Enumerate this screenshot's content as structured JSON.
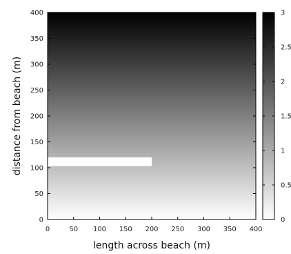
{
  "chart_data": {
    "type": "heatmap",
    "title": "",
    "xlabel": "length across beach (m)",
    "ylabel": "distance from beach (m)",
    "xlim": [
      0,
      400
    ],
    "ylim": [
      0,
      400
    ],
    "xticks": [
      0,
      50,
      100,
      150,
      200,
      250,
      300,
      350,
      400
    ],
    "yticks": [
      0,
      50,
      100,
      150,
      200,
      250,
      300,
      350,
      400
    ],
    "field": {
      "description": "value increases linearly with distance from beach",
      "value_at_y0": 0,
      "value_at_y400": 3,
      "depends_on": "y"
    },
    "overlay_region": {
      "x_range": [
        0,
        200
      ],
      "y_range": [
        103,
        120
      ],
      "color": "#ffffff"
    },
    "colorbar": {
      "min": 0,
      "max": 3,
      "ticks": [
        0,
        0.5,
        1,
        1.5,
        2,
        2.5,
        3
      ],
      "tick_labels": [
        "0",
        "0.5",
        "1",
        "1.5",
        "2",
        "2.5",
        "3"
      ],
      "colormap": "gray_reversed",
      "low_color": "#ffffff",
      "high_color": "#000000"
    },
    "grid": false,
    "legend": "none"
  }
}
